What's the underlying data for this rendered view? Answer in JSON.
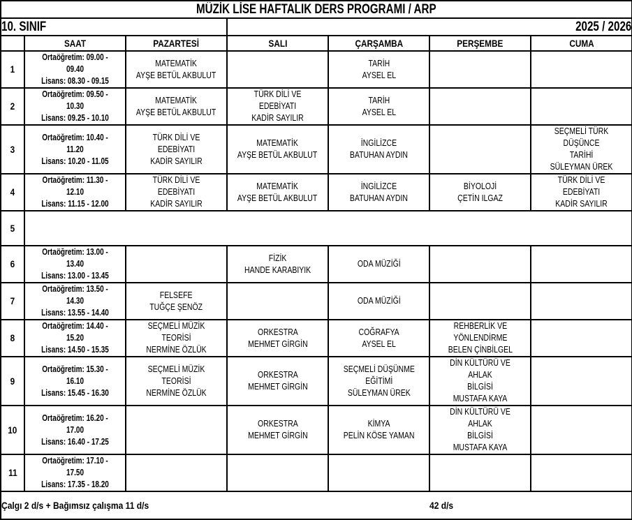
{
  "title": "MÜZİK LİSE HAFTALIK DERS PROGRAMI / ARP",
  "class_label": "10. SINIF",
  "year": "2025 / 2026",
  "headers": [
    "",
    "SAAT",
    "PAZARTESİ",
    "SALI",
    "ÇARŞAMBA",
    "PERŞEMBE",
    "CUMA"
  ],
  "rows": [
    {
      "num": "1",
      "saat": "Ortaöğretim: 09.00 - 09.40\nLisans: 08.30 - 09.15",
      "cells": [
        "MATEMATİK\nAYŞE BETÜL AKBULUT",
        "",
        "TARİH\nAYSEL EL",
        "",
        ""
      ]
    },
    {
      "num": "2",
      "saat": "Ortaöğretim: 09.50 - 10.30\nLisans: 09.25 - 10.10",
      "cells": [
        "MATEMATİK\nAYŞE BETÜL AKBULUT",
        "TÜRK DİLİ VE EDEBİYATI\nKADİR SAYILIR",
        "TARİH\nAYSEL EL",
        "",
        ""
      ]
    },
    {
      "num": "3",
      "saat": "Ortaöğretim: 10.40 - 11.20\nLisans: 10.20 - 11.05",
      "cells": [
        "TÜRK DİLİ VE EDEBİYATI\nKADİR SAYILIR",
        "MATEMATİK\nAYŞE BETÜL AKBULUT",
        "İNGİLİZCE\nBATUHAN AYDIN",
        "",
        "SEÇMELİ TÜRK DÜŞÜNCE\nTARİHİ\nSÜLEYMAN ÜREK"
      ]
    },
    {
      "num": "4",
      "saat": "Ortaöğretim: 11.30 - 12.10\nLisans: 11.15 - 12.00",
      "cells": [
        "TÜRK DİLİ VE EDEBİYATI\nKADİR SAYILIR",
        "MATEMATİK\nAYŞE BETÜL AKBULUT",
        "İNGİLİZCE\nBATUHAN AYDIN",
        "BİYOLOJİ\nÇETİN ILGAZ",
        "TÜRK DİLİ VE EDEBİYATI\nKADİR SAYILIR"
      ]
    },
    {
      "num": "5",
      "saat": "",
      "cells": null
    },
    {
      "num": "6",
      "saat": "Ortaöğretim: 13.00 - 13.40\nLisans: 13.00 - 13.45",
      "cells": [
        "",
        "FİZİK\nHANDE KARABIYIK",
        "ODA MÜZİĞİ",
        "",
        ""
      ]
    },
    {
      "num": "7",
      "saat": "Ortaöğretim: 13.50 - 14.30\nLisans: 13.55 - 14.40",
      "cells": [
        "FELSEFE\nTUĞÇE ŞENÖZ",
        "",
        "ODA MÜZİĞİ",
        "",
        ""
      ]
    },
    {
      "num": "8",
      "saat": "Ortaöğretim: 14.40 - 15.20\nLisans: 14.50 - 15.35",
      "cells": [
        "SEÇMELİ MÜZİK TEORİSİ\nNERMİNE ÖZLÜK",
        "ORKESTRA\nMEHMET GİRGİN",
        "COĞRAFYA\nAYSEL EL",
        "REHBERLİK VE\nYÖNLENDİRME\nBELEN  ÇİNBİLGEL",
        ""
      ]
    },
    {
      "num": "9",
      "saat": "Ortaöğretim: 15.30 - 16.10\nLisans: 15.45 - 16.30",
      "cells": [
        "SEÇMELİ MÜZİK TEORİSİ\nNERMİNE ÖZLÜK",
        "ORKESTRA\nMEHMET GİRGİN",
        "SEÇMELİ DÜŞÜNME\nEĞİTİMİ\nSÜLEYMAN ÜREK",
        "DİN KÜLTÜRÜ VE AHLAK\nBİLGİSİ\nMUSTAFA KAYA",
        ""
      ]
    },
    {
      "num": "10",
      "saat": "Ortaöğretim: 16.20 - 17.00\nLisans: 16.40 - 17.25",
      "cells": [
        "",
        "ORKESTRA\nMEHMET GİRGİN",
        "KİMYA\nPELİN KÖSE YAMAN",
        "DİN KÜLTÜRÜ VE AHLAK\nBİLGİSİ\nMUSTAFA KAYA",
        ""
      ]
    },
    {
      "num": "11",
      "saat": "Ortaöğretim: 17.10 - 17.50\nLisans: 17.35 - 18.20",
      "cells": [
        "",
        "",
        "",
        "",
        ""
      ]
    }
  ],
  "footer": {
    "left": "Çalgı 2 d/s + Bağımsız çalışma 11 d/s",
    "right": "42 d/s"
  }
}
